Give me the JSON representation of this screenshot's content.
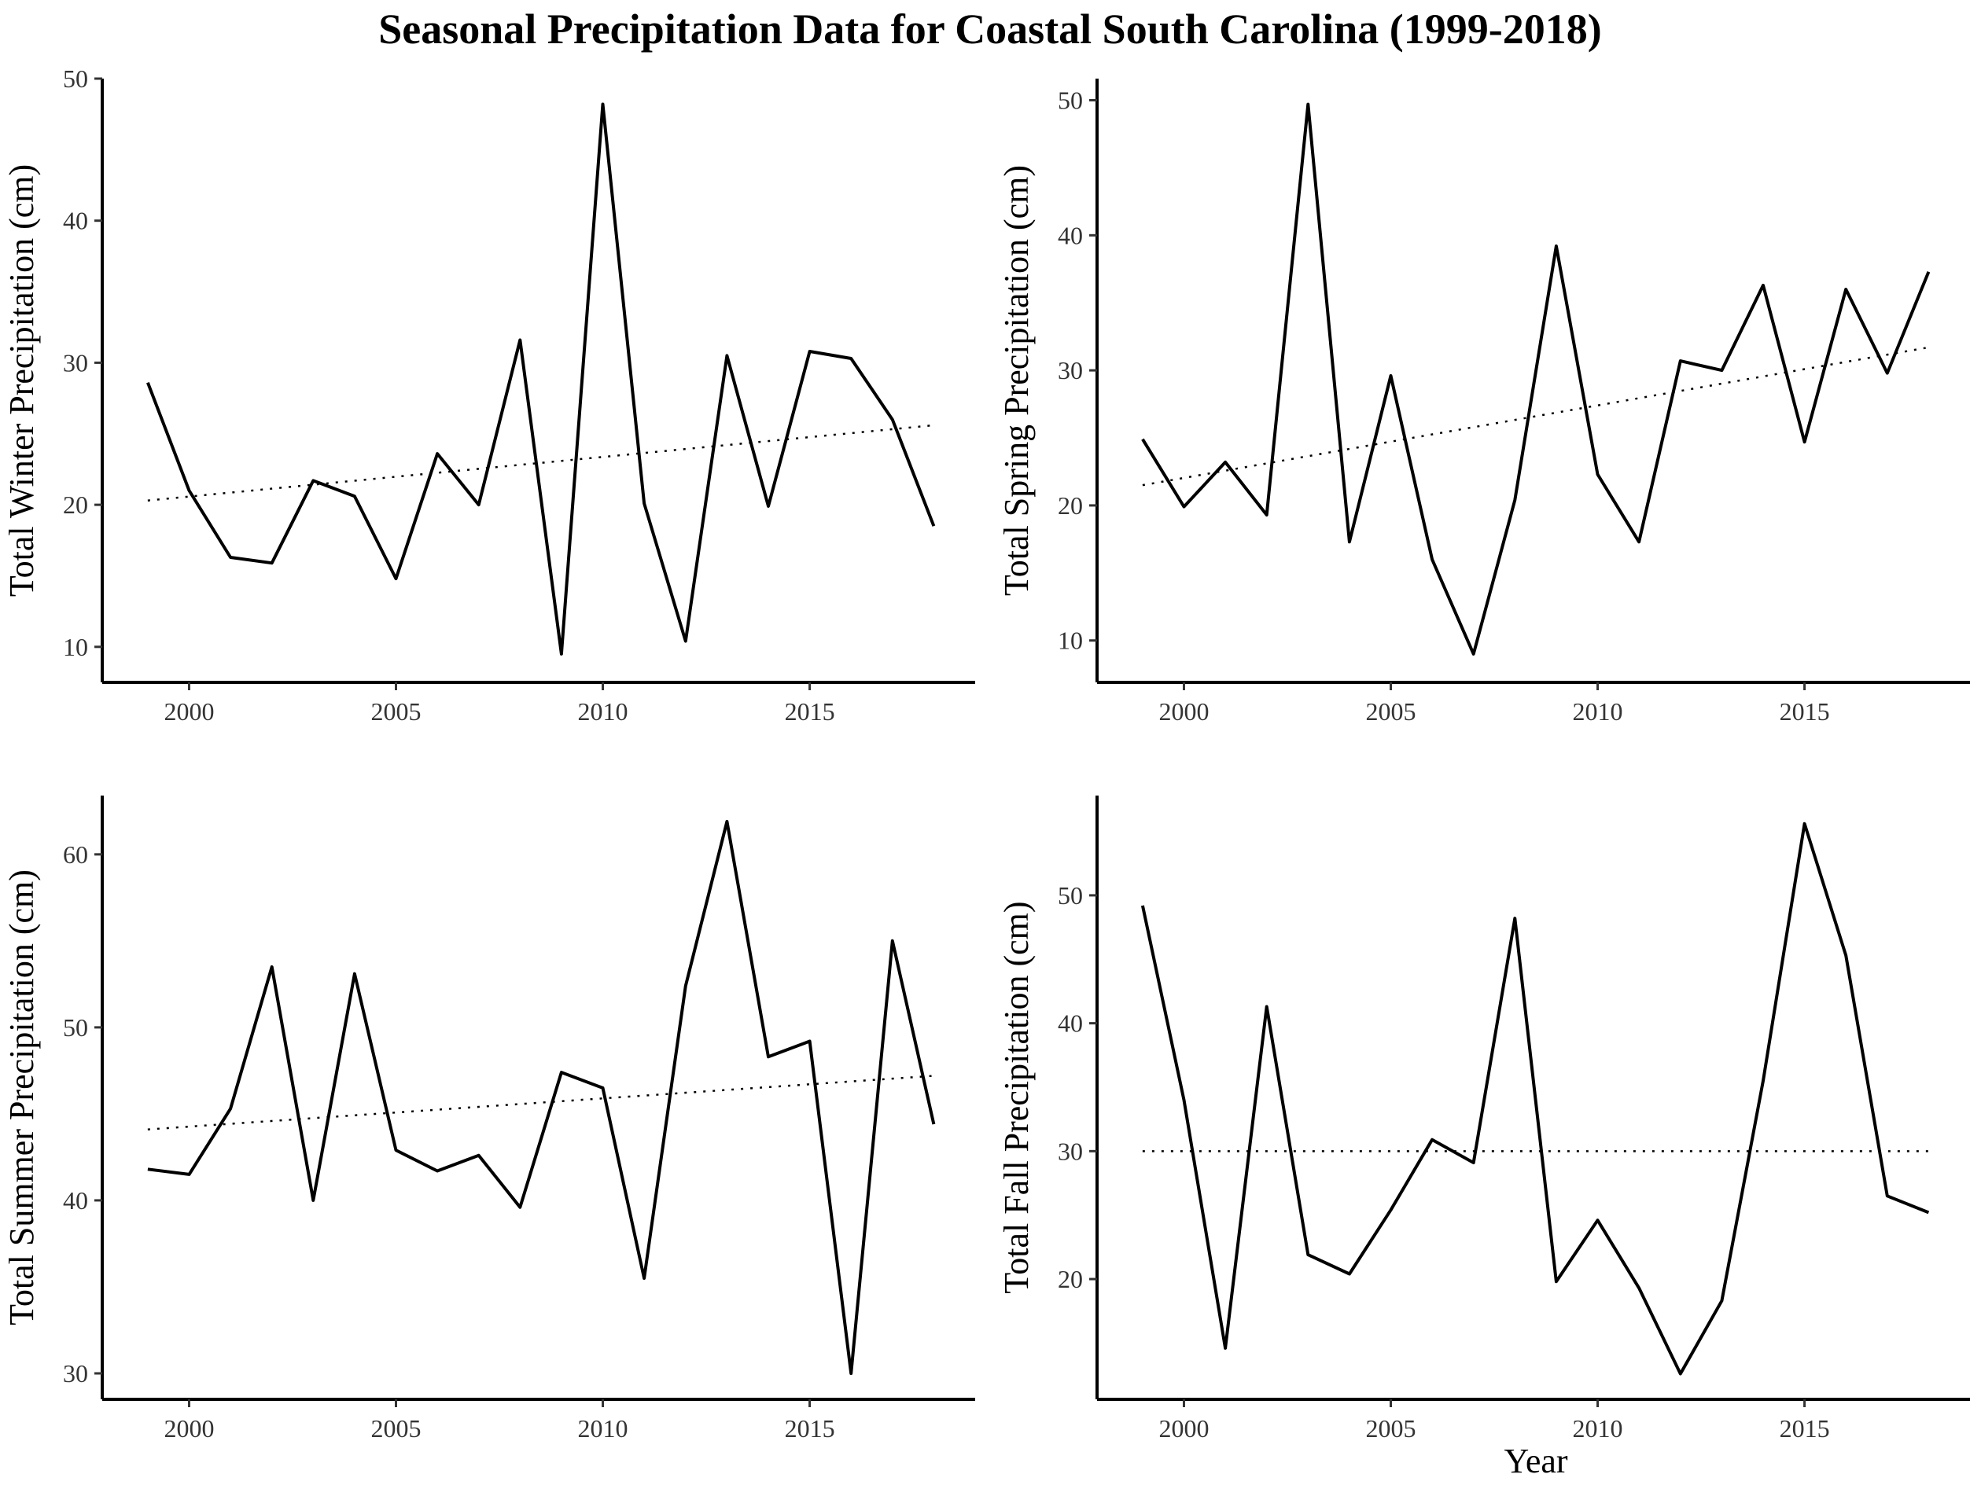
{
  "chart_data": {
    "title": "Seasonal Precipitation Data for Coastal South Carolina (1999-2018)",
    "shared_xlabel": "Year",
    "panels": [
      {
        "type": "line",
        "ylabel": "Total Winter Precipitation (cm)",
        "xlabel": "",
        "x": [
          1999,
          2000,
          2001,
          2002,
          2003,
          2004,
          2005,
          2006,
          2007,
          2008,
          2009,
          2010,
          2011,
          2012,
          2013,
          2014,
          2015,
          2016,
          2017,
          2018
        ],
        "values": [
          28.6,
          21.0,
          16.3,
          15.9,
          21.7,
          20.6,
          14.8,
          23.6,
          20.0,
          31.6,
          9.5,
          48.2,
          20.1,
          10.4,
          30.5,
          19.9,
          30.8,
          30.3,
          26.0,
          18.5
        ],
        "trend": {
          "x": [
            1999,
            2018
          ],
          "y": [
            20.3,
            25.6
          ]
        },
        "xlim": [
          1997.9,
          2019
        ],
        "ylim": [
          7.5,
          50
        ],
        "xticks": [
          2000,
          2005,
          2010,
          2015
        ],
        "yticks": [
          10,
          20,
          30,
          40,
          50
        ]
      },
      {
        "type": "line",
        "ylabel": "Total Spring Precipitation (cm)",
        "xlabel": "",
        "x": [
          1999,
          2000,
          2001,
          2002,
          2003,
          2004,
          2005,
          2006,
          2007,
          2008,
          2009,
          2010,
          2011,
          2012,
          2013,
          2014,
          2015,
          2016,
          2017,
          2018
        ],
        "values": [
          24.9,
          19.9,
          23.2,
          19.3,
          49.7,
          17.3,
          29.6,
          16.0,
          9.0,
          20.4,
          39.2,
          22.3,
          17.3,
          30.7,
          30.0,
          36.3,
          24.7,
          36.0,
          29.8,
          37.3
        ],
        "trend": {
          "x": [
            1999,
            2018
          ],
          "y": [
            21.5,
            31.7
          ]
        },
        "xlim": [
          1997.9,
          2019
        ],
        "ylim": [
          6.9,
          51.6
        ],
        "xticks": [
          2000,
          2005,
          2010,
          2015
        ],
        "yticks": [
          10,
          20,
          30,
          40,
          50
        ]
      },
      {
        "type": "line",
        "ylabel": "Total Summer Precipitation (cm)",
        "xlabel": "",
        "x": [
          1999,
          2000,
          2001,
          2002,
          2003,
          2004,
          2005,
          2006,
          2007,
          2008,
          2009,
          2010,
          2011,
          2012,
          2013,
          2014,
          2015,
          2016,
          2017,
          2018
        ],
        "values": [
          41.8,
          41.5,
          45.3,
          53.5,
          40.0,
          53.1,
          42.9,
          41.7,
          42.6,
          39.6,
          47.4,
          46.5,
          35.5,
          52.4,
          61.9,
          48.3,
          49.2,
          30.0,
          55.0,
          44.4
        ],
        "trend": {
          "x": [
            1999,
            2018
          ],
          "y": [
            44.1,
            47.2
          ]
        },
        "xlim": [
          1997.9,
          2019
        ],
        "ylim": [
          28.5,
          63.4
        ],
        "xticks": [
          2000,
          2005,
          2010,
          2015
        ],
        "yticks": [
          30,
          40,
          50,
          60
        ]
      },
      {
        "type": "line",
        "ylabel": "Total Fall Precipitation (cm)",
        "xlabel": "Year",
        "x": [
          1999,
          2000,
          2001,
          2002,
          2003,
          2004,
          2005,
          2006,
          2007,
          2008,
          2009,
          2010,
          2011,
          2012,
          2013,
          2014,
          2015,
          2016,
          2017,
          2018
        ],
        "values": [
          49.2,
          34.0,
          14.6,
          41.3,
          21.9,
          20.4,
          25.4,
          30.9,
          29.1,
          48.2,
          19.8,
          24.6,
          19.3,
          12.6,
          18.3,
          35.5,
          55.6,
          45.3,
          26.5,
          25.2
        ],
        "trend": {
          "x": [
            1999,
            2018
          ],
          "y": [
            30.0,
            30.0
          ]
        },
        "xlim": [
          1997.9,
          2019
        ],
        "ylim": [
          10.6,
          57.8
        ],
        "xticks": [
          2000,
          2005,
          2010,
          2015
        ],
        "yticks": [
          20,
          30,
          40,
          50
        ]
      }
    ]
  }
}
